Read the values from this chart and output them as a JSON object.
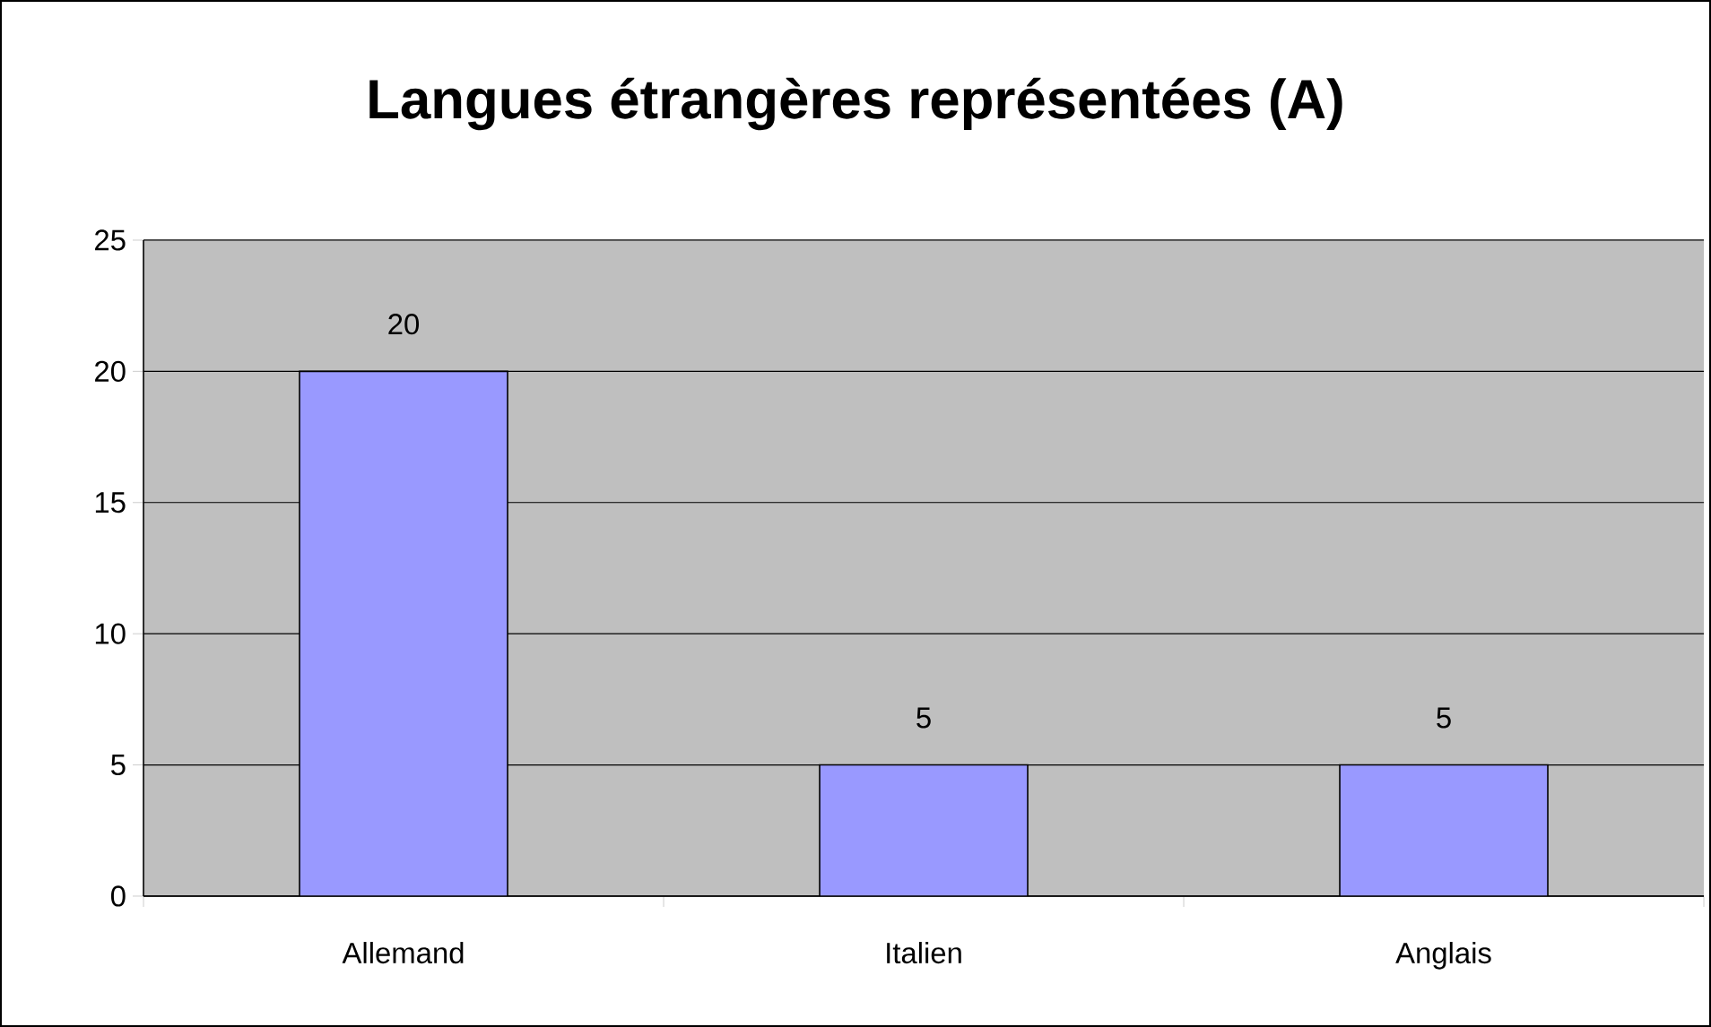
{
  "chart_data": {
    "type": "bar",
    "title": "Langues étrangères représentées (A)",
    "categories": [
      "Allemand",
      "Italien",
      "Anglais"
    ],
    "values": [
      20,
      5,
      5
    ],
    "color": "#9999ff",
    "ylim": [
      0,
      25
    ],
    "yticks": [
      0,
      5,
      10,
      15,
      20,
      25
    ],
    "grid": "y",
    "data_labels": true
  }
}
